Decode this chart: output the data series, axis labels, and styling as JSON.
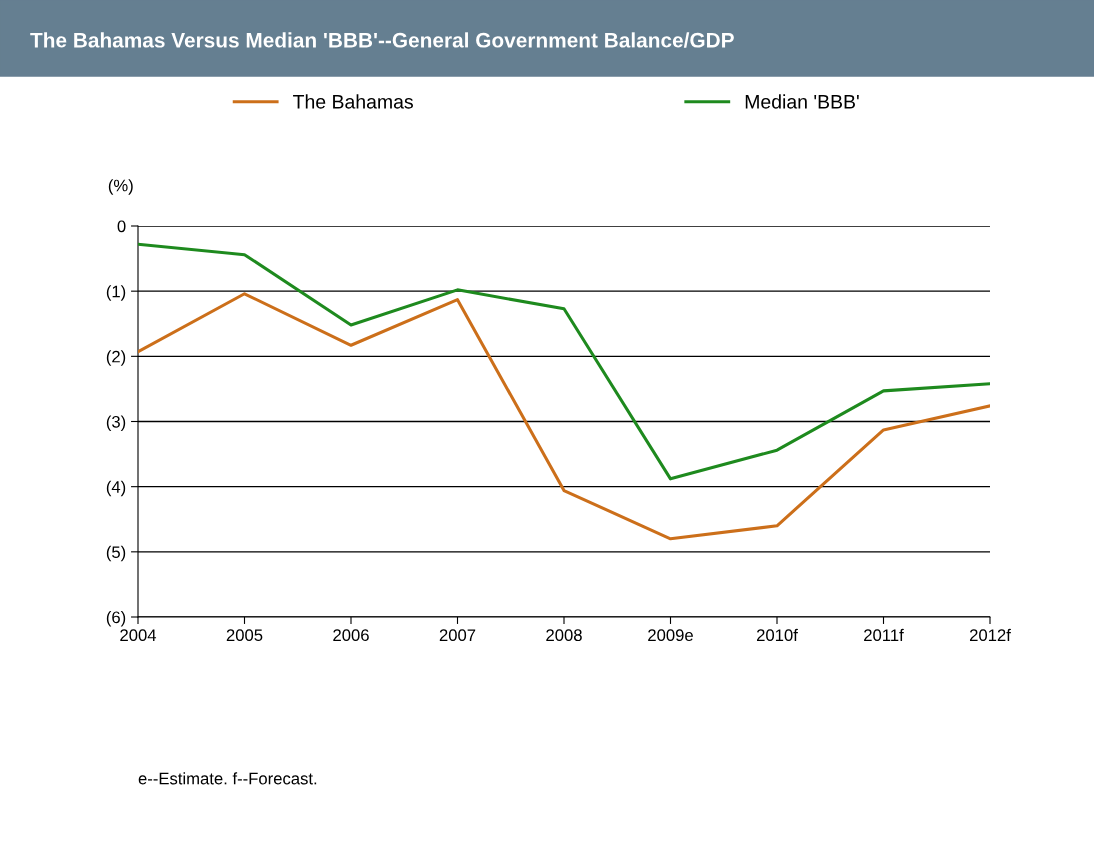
{
  "chart_data": {
    "type": "line",
    "title": "The Bahamas Versus Median 'BBB'--General Government Balance/GDP",
    "ylabel": "(%)",
    "categories": [
      "2004",
      "2005",
      "2006",
      "2007",
      "2008",
      "2009e",
      "2010f",
      "2011f",
      "2012f"
    ],
    "series": [
      {
        "name": "The Bahamas",
        "color": "#cc6f1a",
        "values": [
          -1.93,
          -1.04,
          -1.83,
          -1.13,
          -4.06,
          -4.8,
          -4.6,
          -3.13,
          -2.76
        ]
      },
      {
        "name": "Median 'BBB'",
        "color": "#1e8a1e",
        "values": [
          -0.28,
          -0.44,
          -1.52,
          -0.98,
          -1.27,
          -3.88,
          -3.44,
          -2.53,
          -2.42
        ]
      }
    ],
    "ylim": [
      -6,
      0
    ],
    "yticks": [
      {
        "value": -6,
        "label": "(6)"
      },
      {
        "value": -5,
        "label": "(5)"
      },
      {
        "value": -4,
        "label": "(4)"
      },
      {
        "value": -3,
        "label": "(3)"
      },
      {
        "value": -2,
        "label": "(2)"
      },
      {
        "value": -1,
        "label": "(1)"
      },
      0
    ],
    "grid": "y",
    "legend": "top",
    "marker": "none",
    "line_style": "solid",
    "annotations": [
      "e--Estimate. f--Forecast."
    ]
  }
}
